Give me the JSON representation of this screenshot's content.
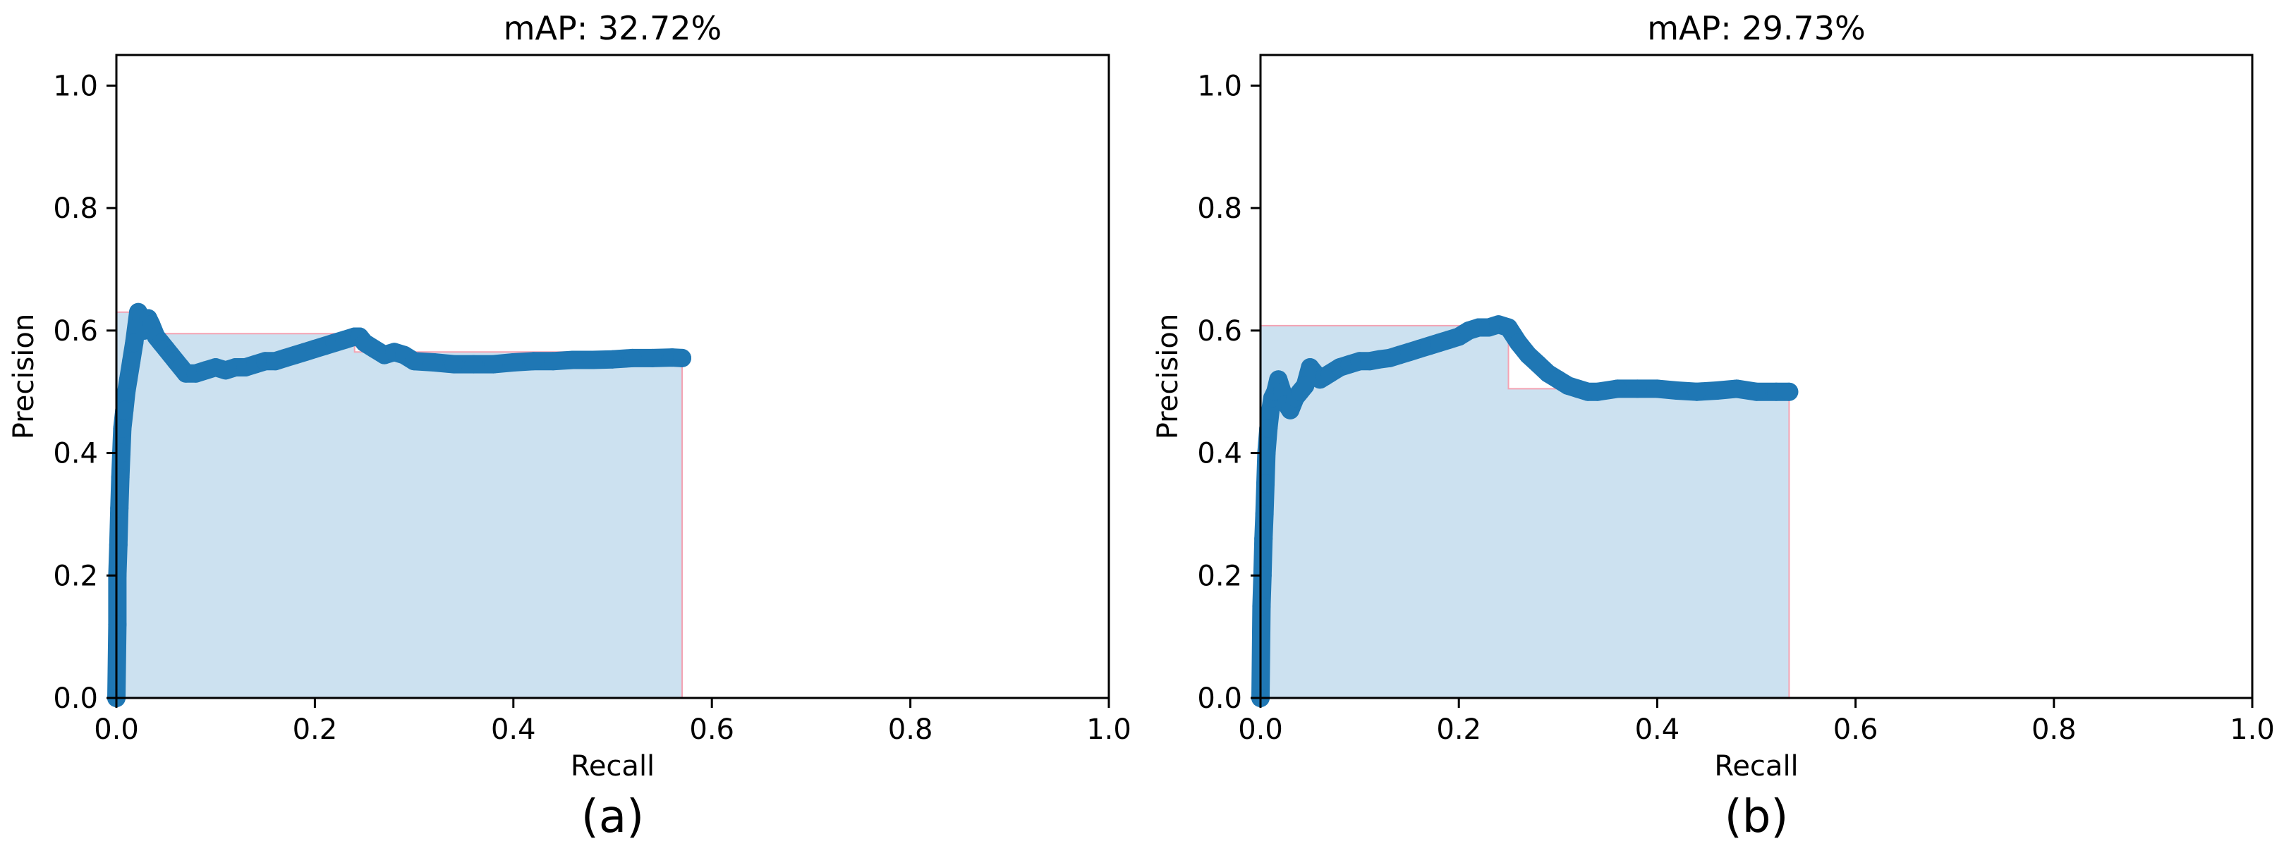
{
  "colors": {
    "line": "#1f77b4",
    "fill": "#cce1f0",
    "fill_edge": "#f4a3b3",
    "axis": "#000000"
  },
  "chart_data": [
    {
      "type": "area",
      "caption": "(a)",
      "title": "mAP: 32.72%",
      "xlabel": "Recall",
      "ylabel": "Precision",
      "xlim": [
        0.0,
        1.0
      ],
      "ylim": [
        0.0,
        1.05
      ],
      "x_ticks": [
        "0.0",
        "0.2",
        "0.4",
        "0.6",
        "0.8",
        "1.0"
      ],
      "y_ticks": [
        "0.0",
        "0.2",
        "0.4",
        "0.6",
        "0.8",
        "1.0"
      ],
      "grid": false,
      "area_envelope": [
        [
          0.0,
          0.63
        ],
        [
          0.035,
          0.63
        ],
        [
          0.035,
          0.595
        ],
        [
          0.24,
          0.595
        ],
        [
          0.24,
          0.565
        ],
        [
          0.57,
          0.565
        ],
        [
          0.57,
          0.0
        ]
      ],
      "series": [
        {
          "x": [
            0.0,
            0.001,
            0.001,
            0.002,
            0.003,
            0.004,
            0.005,
            0.006,
            0.008,
            0.01,
            0.012,
            0.015,
            0.018,
            0.022,
            0.025,
            0.028,
            0.032,
            0.035,
            0.04,
            0.045,
            0.05,
            0.055,
            0.06,
            0.065,
            0.07,
            0.08,
            0.09,
            0.1,
            0.11,
            0.12,
            0.13,
            0.14,
            0.15,
            0.16,
            0.17,
            0.18,
            0.19,
            0.2,
            0.21,
            0.22,
            0.23,
            0.24,
            0.245,
            0.25,
            0.26,
            0.27,
            0.28,
            0.29,
            0.3,
            0.32,
            0.34,
            0.36,
            0.38,
            0.4,
            0.42,
            0.44,
            0.46,
            0.48,
            0.5,
            0.52,
            0.54,
            0.56,
            0.57
          ],
          "y": [
            0.0,
            0.12,
            0.2,
            0.25,
            0.31,
            0.36,
            0.4,
            0.44,
            0.47,
            0.5,
            0.52,
            0.55,
            0.58,
            0.63,
            0.62,
            0.6,
            0.62,
            0.61,
            0.59,
            0.58,
            0.57,
            0.56,
            0.55,
            0.54,
            0.53,
            0.53,
            0.535,
            0.54,
            0.535,
            0.54,
            0.54,
            0.545,
            0.55,
            0.55,
            0.555,
            0.56,
            0.565,
            0.57,
            0.575,
            0.58,
            0.585,
            0.59,
            0.59,
            0.58,
            0.57,
            0.56,
            0.565,
            0.56,
            0.55,
            0.548,
            0.545,
            0.545,
            0.545,
            0.548,
            0.55,
            0.55,
            0.552,
            0.552,
            0.553,
            0.555,
            0.555,
            0.556,
            0.555
          ]
        }
      ]
    },
    {
      "type": "area",
      "caption": "(b)",
      "title": "mAP: 29.73%",
      "xlabel": "Recall",
      "ylabel": "Precision",
      "xlim": [
        0.0,
        1.0
      ],
      "ylim": [
        0.0,
        1.05
      ],
      "x_ticks": [
        "0.0",
        "0.2",
        "0.4",
        "0.6",
        "0.8",
        "1.0"
      ],
      "y_ticks": [
        "0.0",
        "0.2",
        "0.4",
        "0.6",
        "0.8",
        "1.0"
      ],
      "grid": false,
      "area_envelope": [
        [
          0.0,
          0.608
        ],
        [
          0.25,
          0.608
        ],
        [
          0.25,
          0.505
        ],
        [
          0.533,
          0.505
        ],
        [
          0.533,
          0.0
        ]
      ],
      "series": [
        {
          "x": [
            0.0,
            0.001,
            0.002,
            0.003,
            0.004,
            0.005,
            0.006,
            0.008,
            0.01,
            0.012,
            0.015,
            0.018,
            0.022,
            0.026,
            0.03,
            0.035,
            0.04,
            0.045,
            0.05,
            0.055,
            0.06,
            0.065,
            0.07,
            0.08,
            0.09,
            0.1,
            0.11,
            0.12,
            0.13,
            0.14,
            0.15,
            0.16,
            0.17,
            0.18,
            0.19,
            0.2,
            0.21,
            0.22,
            0.23,
            0.24,
            0.25,
            0.26,
            0.27,
            0.28,
            0.29,
            0.3,
            0.31,
            0.32,
            0.33,
            0.34,
            0.36,
            0.38,
            0.4,
            0.42,
            0.44,
            0.46,
            0.48,
            0.5,
            0.52,
            0.533
          ],
          "y": [
            0.0,
            0.15,
            0.2,
            0.26,
            0.3,
            0.35,
            0.4,
            0.44,
            0.47,
            0.49,
            0.5,
            0.52,
            0.5,
            0.48,
            0.47,
            0.49,
            0.5,
            0.51,
            0.54,
            0.53,
            0.52,
            0.525,
            0.53,
            0.54,
            0.545,
            0.55,
            0.55,
            0.553,
            0.555,
            0.56,
            0.565,
            0.57,
            0.575,
            0.58,
            0.585,
            0.59,
            0.6,
            0.605,
            0.605,
            0.61,
            0.605,
            0.58,
            0.56,
            0.545,
            0.53,
            0.52,
            0.51,
            0.505,
            0.5,
            0.5,
            0.505,
            0.505,
            0.505,
            0.502,
            0.5,
            0.502,
            0.505,
            0.5,
            0.5,
            0.5
          ]
        }
      ]
    }
  ]
}
